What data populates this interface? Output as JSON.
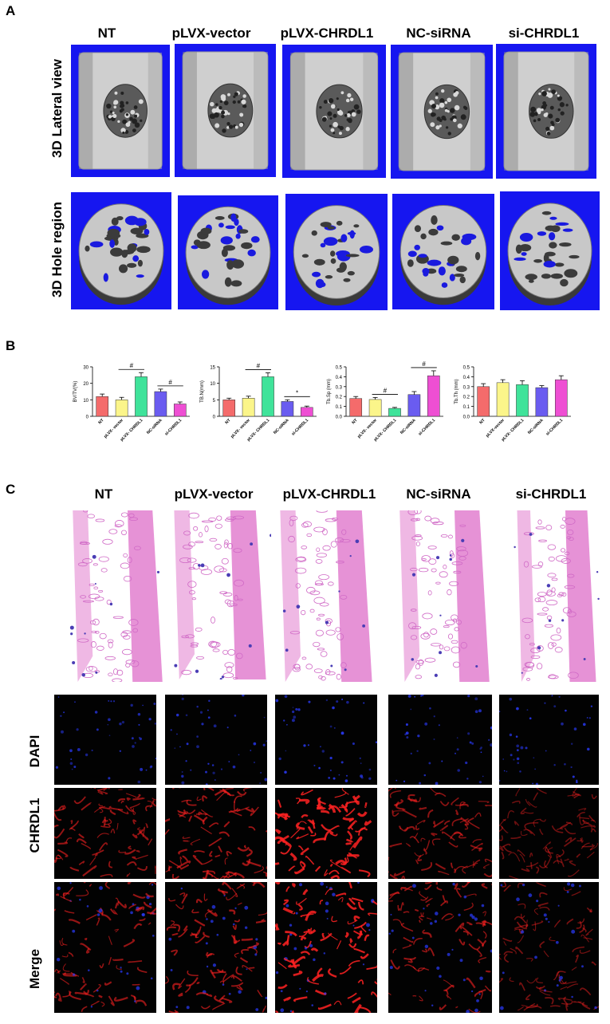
{
  "panel_a": {
    "letter": "A",
    "columns": [
      "NT",
      "pLVX-vector",
      "pLVX-CHRDL1",
      "NC-siRNA",
      "si-CHRDL1"
    ],
    "rows": [
      "3D Lateral view",
      "3D Hole region"
    ]
  },
  "panel_b": {
    "letter": "B"
  },
  "panel_c": {
    "letter": "C",
    "columns": [
      "NT",
      "pLVX-vector",
      "pLVX-CHRDL1",
      "NC-siRNA",
      "si-CHRDL1"
    ],
    "rows": [
      "DAPI",
      "CHRDL1",
      "Merge"
    ]
  },
  "colors": {
    "NT": "#f46b6b",
    "pLVX-vector": "#fbf58a",
    "pLVX-CHRDL1": "#3fe39a",
    "NC-siRNA": "#6a5cf0",
    "si-CHRDL1": "#ee4fd3",
    "microct_bg": "#1616f0",
    "he_stain": "#e07ad0",
    "dapi": "#2b3cff",
    "chrdl1": "#ff2222"
  },
  "chart_data": [
    {
      "type": "bar",
      "ylabel": "BV/TV(%)",
      "categories": [
        "NT",
        "pLVX- vector",
        "pLVX- CHRDL1",
        "NC-siRNA",
        "si-CHRDL1"
      ],
      "values": [
        12,
        10,
        24,
        15,
        7.5
      ],
      "errors": [
        1.5,
        1.5,
        2.5,
        1.5,
        1.2
      ],
      "ylim": [
        0,
        30
      ],
      "yticks": [
        "0",
        "10",
        "20",
        "30"
      ],
      "annotations": [
        {
          "between": [
            1,
            2
          ],
          "symbol": "#"
        },
        {
          "between": [
            3,
            4
          ],
          "symbol": "#"
        }
      ]
    },
    {
      "type": "bar",
      "ylabel": "TB.N(mm)",
      "categories": [
        "NT",
        "pLVX- vector",
        "pLVX- CHRDL1",
        "NC-siRNA",
        "si-CHRDL1"
      ],
      "values": [
        5,
        5.5,
        12,
        4.5,
        2.7
      ],
      "errors": [
        0.5,
        0.6,
        1.2,
        0.5,
        0.4
      ],
      "ylim": [
        0,
        15
      ],
      "yticks": [
        "0",
        "5",
        "10",
        "15"
      ],
      "annotations": [
        {
          "between": [
            1,
            2
          ],
          "symbol": "#"
        },
        {
          "between": [
            3,
            4
          ],
          "symbol": "*"
        }
      ]
    },
    {
      "type": "bar",
      "ylabel": "Tb.Sp (mm)",
      "categories": [
        "NT",
        "pLVX- vector",
        "pLVX- CHRDL1",
        "NC-siRNA",
        "si-CHRDL1"
      ],
      "values": [
        0.18,
        0.17,
        0.08,
        0.22,
        0.41
      ],
      "errors": [
        0.02,
        0.02,
        0.01,
        0.03,
        0.05
      ],
      "ylim": [
        0,
        0.5
      ],
      "yticks": [
        "0.0",
        "0.1",
        "0.2",
        "0.3",
        "0.4",
        "0.5"
      ],
      "annotations": [
        {
          "between": [
            1,
            2
          ],
          "symbol": "#"
        },
        {
          "between": [
            3,
            4
          ],
          "symbol": "#"
        }
      ]
    },
    {
      "type": "bar",
      "ylabel": "Tb.Th (mm)",
      "categories": [
        "NT",
        "pLVX-vector",
        "pLVX- CHRDL1",
        "NC-siRNA",
        "si-CHRDL1"
      ],
      "values": [
        0.3,
        0.34,
        0.32,
        0.29,
        0.37
      ],
      "errors": [
        0.03,
        0.03,
        0.04,
        0.02,
        0.04
      ],
      "ylim": [
        0,
        0.5
      ],
      "yticks": [
        "0.0",
        "0.1",
        "0.2",
        "0.3",
        "0.4",
        "0.5"
      ],
      "annotations": []
    }
  ]
}
